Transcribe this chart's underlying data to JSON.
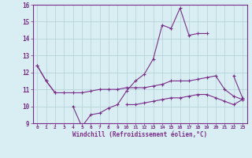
{
  "x": [
    0,
    1,
    2,
    3,
    4,
    5,
    6,
    7,
    8,
    9,
    10,
    11,
    12,
    13,
    14,
    15,
    16,
    17,
    18,
    19,
    20,
    21,
    22,
    23
  ],
  "line1": [
    12.4,
    11.5,
    10.8,
    null,
    10.0,
    8.8,
    9.5,
    9.6,
    9.9,
    10.1,
    10.9,
    11.5,
    11.9,
    12.8,
    14.8,
    14.6,
    15.8,
    14.2,
    14.3,
    14.3,
    null,
    null,
    11.8,
    10.5
  ],
  "line2": [
    12.4,
    11.5,
    10.8,
    10.8,
    10.8,
    10.8,
    10.9,
    11.0,
    11.0,
    11.0,
    11.1,
    11.1,
    11.1,
    11.2,
    11.3,
    11.5,
    11.5,
    11.5,
    11.6,
    11.7,
    11.8,
    11.0,
    10.6,
    10.4
  ],
  "line3": [
    null,
    null,
    null,
    null,
    null,
    null,
    null,
    null,
    null,
    null,
    10.1,
    10.1,
    10.2,
    10.3,
    10.4,
    10.5,
    10.5,
    10.6,
    10.7,
    10.7,
    10.5,
    10.3,
    10.1,
    10.4
  ],
  "line_color": "#7b2d8b",
  "bg_color": "#d9eef2",
  "grid_color": "#b8d4d8",
  "xlabel": "Windchill (Refroidissement éolien,°C)",
  "ylim": [
    9,
    16
  ],
  "xlim": [
    -0.5,
    23.5
  ],
  "yticks": [
    9,
    10,
    11,
    12,
    13,
    14,
    15,
    16
  ],
  "xticks": [
    0,
    1,
    2,
    3,
    4,
    5,
    6,
    7,
    8,
    9,
    10,
    11,
    12,
    13,
    14,
    15,
    16,
    17,
    18,
    19,
    20,
    21,
    22,
    23
  ]
}
